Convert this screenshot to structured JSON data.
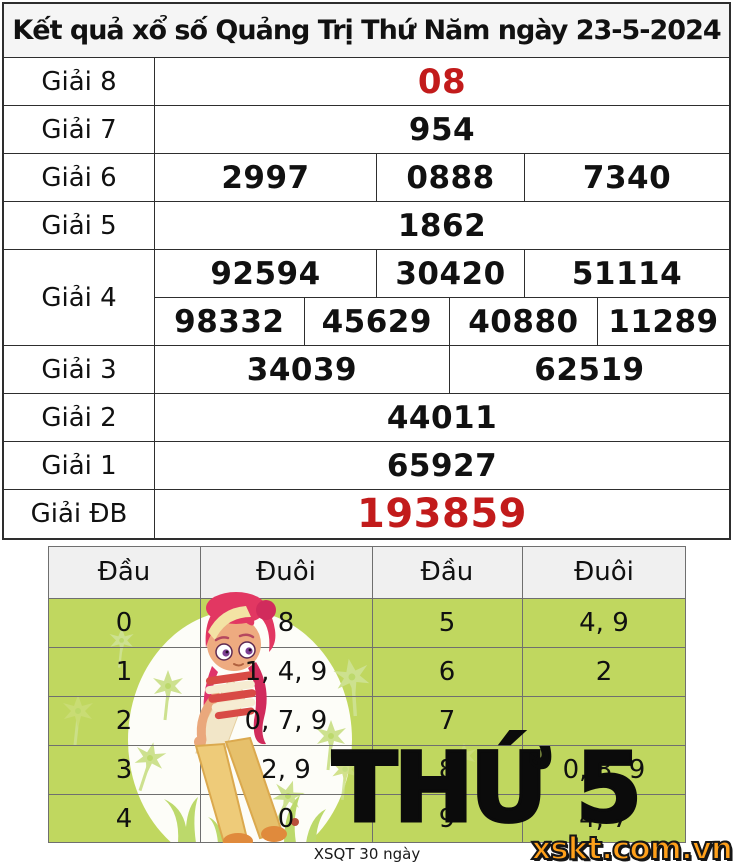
{
  "title": "Kết quả xổ số Quảng Trị Thứ Năm ngày 23-5-2024",
  "prize_table": {
    "rows": [
      {
        "label": "Giải 8",
        "style": "red",
        "lines": [
          [
            "08"
          ]
        ]
      },
      {
        "label": "Giải 7",
        "style": "normal",
        "lines": [
          [
            "954"
          ]
        ]
      },
      {
        "label": "Giải 6",
        "style": "normal",
        "lines": [
          [
            "2997",
            "0888",
            "7340"
          ]
        ]
      },
      {
        "label": "Giải 5",
        "style": "normal",
        "lines": [
          [
            "1862"
          ]
        ]
      },
      {
        "label": "Giải 4",
        "style": "normal",
        "lines": [
          [
            "92594",
            "30420",
            "51114"
          ],
          [
            "98332",
            "45629",
            "40880",
            "11289"
          ]
        ]
      },
      {
        "label": "Giải 3",
        "style": "normal",
        "lines": [
          [
            "34039",
            "62519"
          ]
        ]
      },
      {
        "label": "Giải 2",
        "style": "normal",
        "lines": [
          [
            "44011"
          ]
        ]
      },
      {
        "label": "Giải 1",
        "style": "normal",
        "lines": [
          [
            "65927"
          ]
        ]
      },
      {
        "label": "Giải ĐB",
        "style": "special",
        "lines": [
          [
            "193859"
          ]
        ]
      }
    ]
  },
  "tail_table": {
    "headers": [
      "Đầu",
      "Đuôi",
      "Đầu",
      "Đuôi"
    ],
    "rows": [
      [
        "0",
        "8",
        "5",
        "4, 9"
      ],
      [
        "1",
        "1, 4, 9",
        "6",
        "2"
      ],
      [
        "2",
        "0, 7, 9",
        "7",
        ""
      ],
      [
        "3",
        "2, 9",
        "8",
        "0, 8, 9"
      ],
      [
        "4",
        "0",
        "9",
        "4, 7"
      ]
    ]
  },
  "overlay": {
    "weekday_text": "THỨ 5"
  },
  "footer": {
    "caption": "XSQT 30 ngày",
    "logo_text": "xskt.com.vn"
  },
  "colors": {
    "highlight_red": "#c21b1b",
    "tail_row_green": "#c0d75f",
    "logo_orange": "#ffa01a"
  }
}
